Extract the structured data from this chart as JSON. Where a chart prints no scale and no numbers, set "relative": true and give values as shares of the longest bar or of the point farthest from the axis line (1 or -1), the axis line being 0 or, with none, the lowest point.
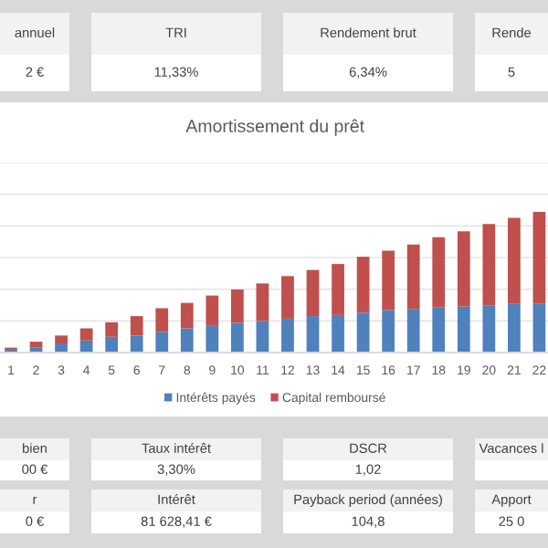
{
  "chart_data": [
    {
      "type": "other",
      "annotations": [
        "annuel",
        "2 €",
        "TRI",
        "11,33%",
        "Rendement brut",
        "6,34%",
        "Rende",
        "5",
        "bien",
        "00 €",
        "Taux intérêt",
        "3,30%",
        "DSCR",
        "1,02",
        "Vacances l",
        null,
        "r",
        "0 €",
        "Intérêt",
        "81 628,41 €",
        "Payback period (années)",
        "104,8",
        "Apport",
        "25 0"
      ]
    },
    {
      "type": "bar",
      "title": "Amortissement du prêt",
      "stacked": true,
      "relative": true,
      "grid": "y",
      "legend": "bottom",
      "categories": [
        "1",
        "2",
        "3",
        "4",
        "5",
        "6",
        "7",
        "8",
        "9",
        "10",
        "11",
        "12",
        "13",
        "14",
        "15",
        "16",
        "17",
        "18",
        "19",
        "20",
        "21",
        "22"
      ],
      "series": [
        {
          "name": "Intérêts payés",
          "color": "#4f81bd",
          "values": [
            0.026,
            0.034,
            0.065,
            0.086,
            0.112,
            0.121,
            0.147,
            0.172,
            0.194,
            0.211,
            0.224,
            0.241,
            0.259,
            0.267,
            0.284,
            0.302,
            0.31,
            0.319,
            0.328,
            0.336,
            0.345,
            0.349
          ]
        },
        {
          "name": "Capital remboursé",
          "color": "#c0504d",
          "values": [
            0.009,
            0.043,
            0.056,
            0.086,
            0.103,
            0.138,
            0.168,
            0.181,
            0.211,
            0.237,
            0.267,
            0.302,
            0.328,
            0.362,
            0.397,
            0.422,
            0.457,
            0.5,
            0.534,
            0.578,
            0.612,
            0.651
          ]
        }
      ]
    }
  ]
}
